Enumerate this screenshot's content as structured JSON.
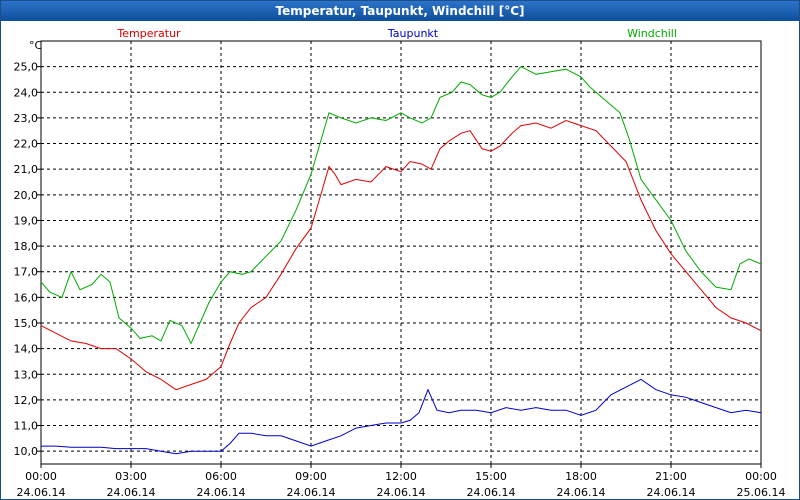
{
  "window": {
    "title": "Temperatur, Taupunkt, Windchill [°C]"
  },
  "chart_data": {
    "type": "line",
    "title": "Temperatur, Taupunkt, Windchill [°C]",
    "y_unit": "°C",
    "ylim": [
      9.5,
      26.0
    ],
    "yticks": [
      "10,0",
      "11,0",
      "12,0",
      "13,0",
      "14,0",
      "15,0",
      "16,0",
      "17,0",
      "18,0",
      "19,0",
      "20,0",
      "21,0",
      "22,0",
      "23,0",
      "24,0",
      "25,0"
    ],
    "xlim": [
      0,
      24
    ],
    "x_unit": "hours since 24.06.14 00:00",
    "xticks": [
      {
        "time": "00:00",
        "date": "24.06.14"
      },
      {
        "time": "03:00",
        "date": "24.06.14"
      },
      {
        "time": "06:00",
        "date": "24.06.14"
      },
      {
        "time": "09:00",
        "date": "24.06.14"
      },
      {
        "time": "12:00",
        "date": "24.06.14"
      },
      {
        "time": "15:00",
        "date": "24.06.14"
      },
      {
        "time": "18:00",
        "date": "24.06.14"
      },
      {
        "time": "21:00",
        "date": "24.06.14"
      },
      {
        "time": "00:00",
        "date": "25.06.14"
      }
    ],
    "grid": true,
    "legend_position": "top",
    "series": [
      {
        "name": "Temperatur",
        "color": "#dd0000",
        "points": [
          [
            0,
            14.9
          ],
          [
            0.5,
            14.6
          ],
          [
            1,
            14.3
          ],
          [
            1.5,
            14.2
          ],
          [
            2,
            14.0
          ],
          [
            2.5,
            14.0
          ],
          [
            3,
            13.6
          ],
          [
            3.5,
            13.1
          ],
          [
            4,
            12.8
          ],
          [
            4.5,
            12.4
          ],
          [
            5,
            12.6
          ],
          [
            5.5,
            12.8
          ],
          [
            6,
            13.3
          ],
          [
            6.3,
            14.2
          ],
          [
            6.6,
            15.0
          ],
          [
            7,
            15.6
          ],
          [
            7.5,
            16.0
          ],
          [
            8,
            16.9
          ],
          [
            8.5,
            17.9
          ],
          [
            9,
            18.7
          ],
          [
            9.2,
            19.5
          ],
          [
            9.4,
            20.3
          ],
          [
            9.6,
            21.1
          ],
          [
            9.8,
            20.8
          ],
          [
            10,
            20.4
          ],
          [
            10.5,
            20.6
          ],
          [
            11,
            20.5
          ],
          [
            11.5,
            21.1
          ],
          [
            12,
            20.9
          ],
          [
            12.3,
            21.3
          ],
          [
            12.7,
            21.2
          ],
          [
            13,
            21.0
          ],
          [
            13.3,
            21.8
          ],
          [
            13.6,
            22.1
          ],
          [
            14,
            22.4
          ],
          [
            14.3,
            22.5
          ],
          [
            14.7,
            21.8
          ],
          [
            15,
            21.7
          ],
          [
            15.3,
            21.9
          ],
          [
            15.7,
            22.4
          ],
          [
            16,
            22.7
          ],
          [
            16.5,
            22.8
          ],
          [
            17,
            22.6
          ],
          [
            17.5,
            22.9
          ],
          [
            18,
            22.7
          ],
          [
            18.5,
            22.5
          ],
          [
            19,
            21.9
          ],
          [
            19.5,
            21.3
          ],
          [
            20,
            19.8
          ],
          [
            20.5,
            18.6
          ],
          [
            21,
            17.7
          ],
          [
            21.5,
            17.0
          ],
          [
            22,
            16.3
          ],
          [
            22.5,
            15.6
          ],
          [
            23,
            15.2
          ],
          [
            23.5,
            15.0
          ],
          [
            24,
            14.7
          ]
        ]
      },
      {
        "name": "Taupunkt",
        "color": "#0000cc",
        "points": [
          [
            0,
            10.2
          ],
          [
            0.5,
            10.2
          ],
          [
            1,
            10.15
          ],
          [
            1.5,
            10.15
          ],
          [
            2,
            10.15
          ],
          [
            2.5,
            10.1
          ],
          [
            3,
            10.1
          ],
          [
            3.5,
            10.1
          ],
          [
            4,
            10.0
          ],
          [
            4.5,
            9.9
          ],
          [
            5,
            10.0
          ],
          [
            5.5,
            10.0
          ],
          [
            6,
            10.0
          ],
          [
            6.3,
            10.3
          ],
          [
            6.6,
            10.7
          ],
          [
            7,
            10.7
          ],
          [
            7.5,
            10.6
          ],
          [
            8,
            10.6
          ],
          [
            8.5,
            10.4
          ],
          [
            9,
            10.2
          ],
          [
            9.5,
            10.4
          ],
          [
            10,
            10.6
          ],
          [
            10.5,
            10.9
          ],
          [
            11,
            11.0
          ],
          [
            11.5,
            11.1
          ],
          [
            12,
            11.1
          ],
          [
            12.3,
            11.2
          ],
          [
            12.6,
            11.5
          ],
          [
            12.9,
            12.4
          ],
          [
            13.2,
            11.6
          ],
          [
            13.6,
            11.5
          ],
          [
            14,
            11.6
          ],
          [
            14.5,
            11.6
          ],
          [
            15,
            11.5
          ],
          [
            15.5,
            11.7
          ],
          [
            16,
            11.6
          ],
          [
            16.5,
            11.7
          ],
          [
            17,
            11.6
          ],
          [
            17.5,
            11.6
          ],
          [
            18,
            11.4
          ],
          [
            18.5,
            11.6
          ],
          [
            19,
            12.2
          ],
          [
            19.5,
            12.5
          ],
          [
            20,
            12.8
          ],
          [
            20.5,
            12.4
          ],
          [
            21,
            12.2
          ],
          [
            21.5,
            12.1
          ],
          [
            22,
            11.9
          ],
          [
            22.5,
            11.7
          ],
          [
            23,
            11.5
          ],
          [
            23.5,
            11.6
          ],
          [
            24,
            11.5
          ]
        ]
      },
      {
        "name": "Windchill",
        "color": "#00aa00",
        "points": [
          [
            0,
            16.6
          ],
          [
            0.3,
            16.2
          ],
          [
            0.7,
            16.0
          ],
          [
            1,
            17.0
          ],
          [
            1.3,
            16.3
          ],
          [
            1.7,
            16.5
          ],
          [
            2,
            16.9
          ],
          [
            2.3,
            16.6
          ],
          [
            2.6,
            15.2
          ],
          [
            3,
            14.8
          ],
          [
            3.3,
            14.4
          ],
          [
            3.7,
            14.5
          ],
          [
            4,
            14.3
          ],
          [
            4.3,
            15.1
          ],
          [
            4.7,
            14.9
          ],
          [
            5,
            14.2
          ],
          [
            5.3,
            15.0
          ],
          [
            5.6,
            15.8
          ],
          [
            6,
            16.6
          ],
          [
            6.3,
            17.0
          ],
          [
            6.7,
            16.9
          ],
          [
            7,
            17.0
          ],
          [
            7.5,
            17.6
          ],
          [
            8,
            18.2
          ],
          [
            8.5,
            19.4
          ],
          [
            9,
            20.8
          ],
          [
            9.3,
            22.0
          ],
          [
            9.6,
            23.2
          ],
          [
            10,
            23.0
          ],
          [
            10.5,
            22.8
          ],
          [
            11,
            23.0
          ],
          [
            11.5,
            22.9
          ],
          [
            12,
            23.2
          ],
          [
            12.3,
            23.0
          ],
          [
            12.7,
            22.8
          ],
          [
            13,
            23.0
          ],
          [
            13.3,
            23.8
          ],
          [
            13.7,
            24.0
          ],
          [
            14,
            24.4
          ],
          [
            14.3,
            24.3
          ],
          [
            14.7,
            23.9
          ],
          [
            15,
            23.8
          ],
          [
            15.3,
            24.0
          ],
          [
            15.7,
            24.6
          ],
          [
            16,
            25.0
          ],
          [
            16.5,
            24.7
          ],
          [
            17,
            24.8
          ],
          [
            17.5,
            24.9
          ],
          [
            18,
            24.6
          ],
          [
            18.3,
            24.2
          ],
          [
            18.7,
            23.8
          ],
          [
            19,
            23.5
          ],
          [
            19.3,
            23.2
          ],
          [
            19.6,
            22.2
          ],
          [
            20,
            20.6
          ],
          [
            20.5,
            19.8
          ],
          [
            21,
            19.0
          ],
          [
            21.5,
            17.8
          ],
          [
            22,
            17.0
          ],
          [
            22.5,
            16.4
          ],
          [
            23,
            16.3
          ],
          [
            23.3,
            17.3
          ],
          [
            23.6,
            17.5
          ],
          [
            24,
            17.3
          ]
        ]
      }
    ]
  }
}
